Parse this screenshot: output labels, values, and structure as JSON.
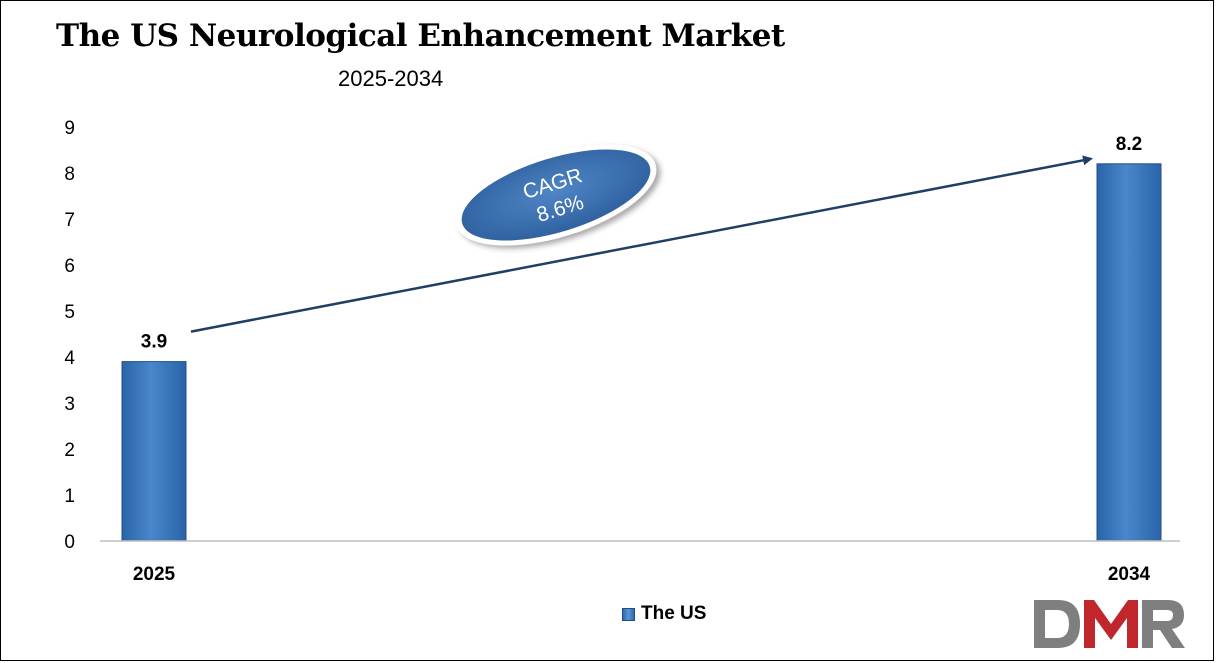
{
  "chart_data": {
    "type": "bar",
    "title": "The US Neurological Enhancement Market",
    "subtitle": "2025-2034",
    "categories": [
      "2025",
      "2034"
    ],
    "series": [
      {
        "name": "The US",
        "values": [
          3.9,
          8.2
        ],
        "color": "#3a78c0"
      }
    ],
    "data_labels": [
      "3.9",
      "8.2"
    ],
    "ylim": [
      0,
      9
    ],
    "yticks": [
      0,
      1,
      2,
      3,
      4,
      5,
      6,
      7,
      8,
      9
    ],
    "xlabel": "",
    "ylabel": "",
    "grid": false,
    "legend_position": "bottom",
    "annotation": {
      "line1": "CAGR",
      "line2": "8.6%"
    }
  },
  "logo": {
    "text": "DMR",
    "colors": {
      "d": "#7f7f7f",
      "m": "#c0272d",
      "r": "#7f7f7f"
    }
  }
}
